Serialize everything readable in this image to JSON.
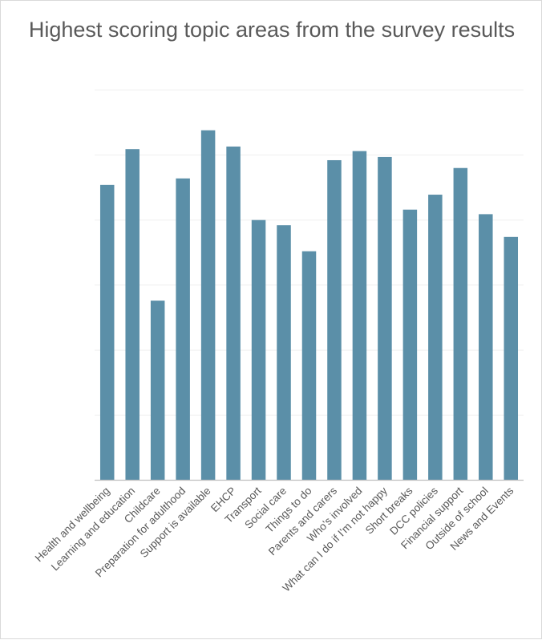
{
  "chart_data": {
    "type": "bar",
    "title": "Highest scoring topic areas from the survey results",
    "xlabel": "",
    "ylabel": "",
    "ylim": [
      0,
      6
    ],
    "grid": true,
    "y_tick_labels_shown": false,
    "bar_color": "#5b8fa8",
    "categories": [
      "Health and wellbeing",
      "Learning and education",
      "Childcare",
      "Preparation for adulthood",
      "Support is available",
      "EHCP",
      "Transport",
      "Social care",
      "Things to do",
      "Parents and carers",
      "Who's involved",
      "What can I do if I'm not happy",
      "Short breaks",
      "DCC policies",
      "Financial support",
      "Outside of school",
      "News and Events"
    ],
    "values": [
      4.54,
      5.09,
      2.76,
      4.64,
      5.38,
      5.13,
      4.0,
      3.92,
      3.52,
      4.92,
      5.06,
      4.97,
      4.16,
      4.39,
      4.8,
      4.09,
      3.74
    ]
  }
}
